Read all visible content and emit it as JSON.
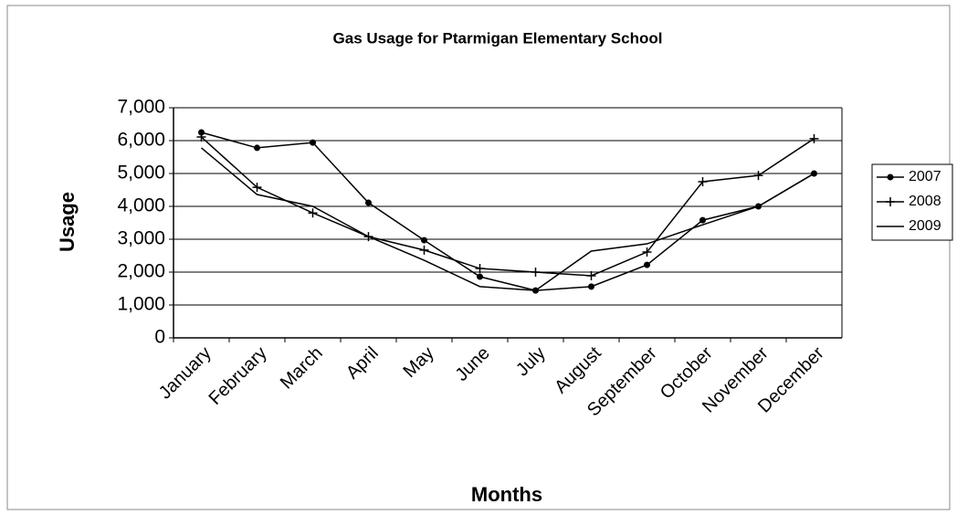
{
  "chart_data": {
    "type": "line",
    "title": "Gas Usage for Ptarmigan Elementary School",
    "x_label": "Months",
    "y_label": "Usage",
    "categories": [
      "January",
      "February",
      "March",
      "April",
      "May",
      "June",
      "July",
      "August",
      "September",
      "October",
      "November",
      "December"
    ],
    "series": [
      {
        "name": "2007",
        "color": "#000000",
        "marker": "circle",
        "values": [
          6250,
          5780,
          5940,
          4110,
          2970,
          1860,
          1440,
          1560,
          2220,
          3580,
          4000,
          5000
        ]
      },
      {
        "name": "2008",
        "color": "#000000",
        "marker": "plus",
        "values": [
          6110,
          4580,
          3800,
          3080,
          2670,
          2110,
          2000,
          1890,
          2610,
          4750,
          4940,
          6060
        ]
      },
      {
        "name": "2009",
        "color": "#000000",
        "marker": "none",
        "values": [
          5780,
          4360,
          4000,
          3080,
          2360,
          1560,
          1440,
          2640,
          2860,
          3440,
          4000,
          5000
        ]
      }
    ],
    "ylim": [
      0,
      7000
    ],
    "yticks": [
      0,
      {
        "value": 1000,
        "label": "1,000"
      },
      {
        "value": 2000,
        "label": "2,000"
      },
      {
        "value": 3000,
        "label": "3,000"
      },
      {
        "value": 4000,
        "label": "4,000"
      },
      {
        "value": 5000,
        "label": "5,000"
      },
      {
        "value": 6000,
        "label": "6,000"
      },
      {
        "value": 7000,
        "label": "7,000"
      }
    ],
    "grid": true,
    "legend": "right"
  }
}
